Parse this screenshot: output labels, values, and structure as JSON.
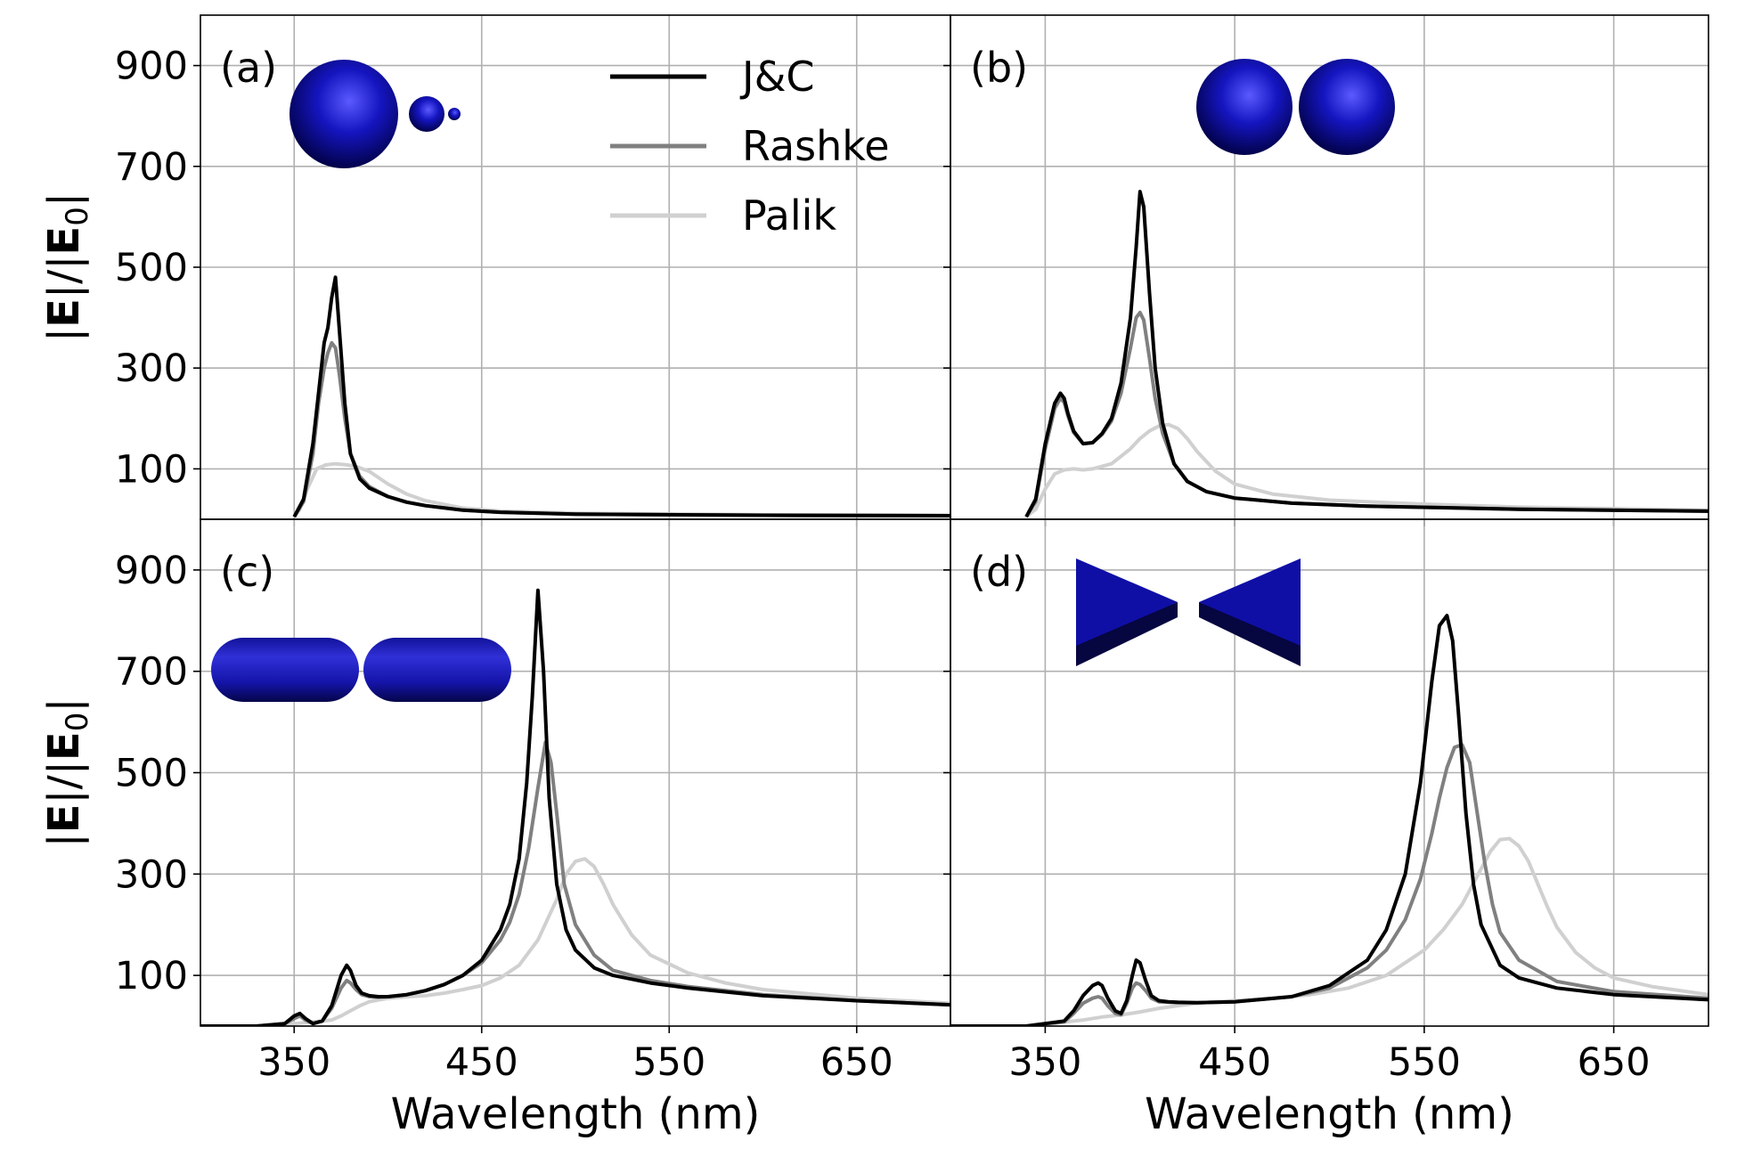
{
  "chart_data": [
    {
      "type": "line",
      "panel_label": "(a)",
      "xlim": [
        300,
        700
      ],
      "ylim": [
        0,
        1000
      ],
      "xticks": [
        "350",
        "450",
        "550",
        "650"
      ],
      "yticks": [
        "100",
        "300",
        "500",
        "700",
        "900"
      ],
      "ylabel_parts": [
        "|",
        "E",
        "|/|",
        "E",
        "0",
        "|"
      ],
      "xlabel": "",
      "grid": true,
      "inset": "spheres",
      "series": [
        {
          "name": "J&C",
          "color": "#000000",
          "x": [
            350,
            355,
            360,
            363,
            366,
            368,
            370,
            372,
            374,
            377,
            380,
            385,
            390,
            400,
            410,
            420,
            440,
            460,
            500,
            600,
            700
          ],
          "y": [
            5,
            40,
            150,
            250,
            350,
            380,
            440,
            480,
            380,
            230,
            130,
            80,
            62,
            45,
            34,
            27,
            18,
            14,
            10,
            8,
            7
          ]
        },
        {
          "name": "Rashke",
          "color": "#808080",
          "x": [
            350,
            355,
            360,
            363,
            366,
            368,
            370,
            372,
            374,
            377,
            380,
            385,
            390,
            400,
            410,
            420,
            440,
            460,
            500,
            600,
            700
          ],
          "y": [
            5,
            35,
            130,
            230,
            300,
            330,
            350,
            340,
            290,
            200,
            130,
            85,
            65,
            45,
            34,
            27,
            18,
            14,
            10,
            8,
            7
          ]
        },
        {
          "name": "Palik",
          "color": "#d0d0d0",
          "x": [
            350,
            353,
            357,
            362,
            367,
            372,
            378,
            383,
            390,
            400,
            410,
            420,
            440,
            460,
            500,
            600,
            700
          ],
          "y": [
            5,
            20,
            60,
            100,
            108,
            110,
            108,
            105,
            95,
            70,
            50,
            37,
            22,
            16,
            12,
            9,
            8
          ]
        }
      ]
    },
    {
      "type": "line",
      "panel_label": "(b)",
      "xlim": [
        300,
        700
      ],
      "ylim": [
        0,
        1000
      ],
      "xticks": [
        "350",
        "450",
        "550",
        "650"
      ],
      "yticks": [
        "100",
        "300",
        "500",
        "700",
        "900"
      ],
      "xlabel": "",
      "grid": true,
      "inset": "dimer",
      "series": [
        {
          "name": "J&C",
          "color": "#000000",
          "x": [
            340,
            345,
            350,
            355,
            358,
            360,
            362,
            365,
            370,
            375,
            380,
            385,
            390,
            395,
            398,
            400,
            402,
            405,
            408,
            412,
            418,
            425,
            435,
            450,
            480,
            520,
            600,
            700
          ],
          "y": [
            5,
            40,
            150,
            230,
            250,
            240,
            210,
            175,
            150,
            152,
            170,
            200,
            270,
            400,
            540,
            650,
            620,
            450,
            300,
            190,
            110,
            75,
            55,
            42,
            32,
            26,
            20,
            16
          ]
        },
        {
          "name": "Rashke",
          "color": "#808080",
          "x": [
            340,
            345,
            350,
            355,
            358,
            360,
            362,
            365,
            370,
            375,
            380,
            385,
            390,
            395,
            398,
            400,
            402,
            405,
            408,
            412,
            418,
            425,
            435,
            450,
            480,
            520,
            600,
            700
          ],
          "y": [
            5,
            35,
            140,
            220,
            240,
            232,
            205,
            172,
            150,
            152,
            168,
            195,
            250,
            340,
            400,
            410,
            395,
            320,
            240,
            170,
            110,
            75,
            55,
            42,
            32,
            26,
            20,
            16
          ]
        },
        {
          "name": "Palik",
          "color": "#d0d0d0",
          "x": [
            340,
            345,
            350,
            355,
            360,
            365,
            370,
            375,
            380,
            385,
            390,
            395,
            400,
            405,
            410,
            415,
            420,
            425,
            430,
            440,
            450,
            470,
            500,
            550,
            600,
            700
          ],
          "y": [
            5,
            20,
            60,
            90,
            98,
            100,
            98,
            100,
            105,
            110,
            125,
            140,
            160,
            175,
            185,
            188,
            180,
            160,
            135,
            95,
            70,
            50,
            38,
            30,
            24,
            18
          ]
        }
      ]
    },
    {
      "type": "line",
      "panel_label": "(c)",
      "xlim": [
        300,
        700
      ],
      "ylim": [
        0,
        1000
      ],
      "xticks": [
        "350",
        "450",
        "550",
        "650"
      ],
      "yticks": [
        "100",
        "300",
        "500",
        "700",
        "900"
      ],
      "ylabel_parts": [
        "|",
        "E",
        "|/|",
        "E",
        "0",
        "|"
      ],
      "xlabel": "Wavelength (nm)",
      "grid": true,
      "inset": "rods",
      "series": [
        {
          "name": "J&C",
          "color": "#000000",
          "x": [
            300,
            330,
            345,
            350,
            353,
            356,
            360,
            365,
            370,
            375,
            378,
            380,
            383,
            386,
            390,
            395,
            400,
            410,
            420,
            430,
            440,
            450,
            460,
            465,
            470,
            474,
            477,
            480,
            483,
            486,
            490,
            495,
            500,
            510,
            520,
            540,
            560,
            600,
            650,
            700
          ],
          "y": [
            0,
            0,
            5,
            20,
            25,
            15,
            5,
            10,
            40,
            100,
            120,
            110,
            80,
            65,
            60,
            58,
            58,
            62,
            70,
            82,
            100,
            130,
            190,
            240,
            330,
            480,
            650,
            860,
            700,
            450,
            280,
            190,
            150,
            115,
            100,
            85,
            75,
            60,
            50,
            42
          ]
        },
        {
          "name": "Rashke",
          "color": "#808080",
          "x": [
            300,
            330,
            345,
            350,
            353,
            356,
            360,
            365,
            370,
            375,
            378,
            380,
            383,
            386,
            390,
            395,
            400,
            410,
            420,
            430,
            440,
            450,
            460,
            465,
            470,
            475,
            480,
            484,
            487,
            490,
            494,
            500,
            510,
            520,
            540,
            560,
            600,
            650,
            700
          ],
          "y": [
            0,
            0,
            5,
            15,
            20,
            12,
            5,
            10,
            35,
            75,
            90,
            85,
            72,
            62,
            58,
            57,
            58,
            62,
            70,
            82,
            100,
            125,
            170,
            205,
            260,
            350,
            470,
            560,
            520,
            420,
            280,
            200,
            140,
            110,
            90,
            78,
            62,
            50,
            42
          ]
        },
        {
          "name": "Palik",
          "color": "#d0d0d0",
          "x": [
            300,
            330,
            350,
            360,
            370,
            375,
            380,
            385,
            390,
            400,
            410,
            420,
            430,
            440,
            450,
            460,
            470,
            480,
            490,
            495,
            500,
            505,
            510,
            515,
            520,
            530,
            540,
            560,
            580,
            600,
            650,
            700
          ],
          "y": [
            0,
            0,
            5,
            8,
            12,
            20,
            30,
            40,
            48,
            55,
            58,
            60,
            65,
            72,
            80,
            95,
            120,
            170,
            250,
            300,
            325,
            330,
            315,
            280,
            240,
            180,
            140,
            105,
            85,
            72,
            55,
            45
          ]
        }
      ]
    },
    {
      "type": "line",
      "panel_label": "(d)",
      "xlim": [
        300,
        700
      ],
      "ylim": [
        0,
        1000
      ],
      "xticks": [
        "350",
        "450",
        "550",
        "650"
      ],
      "yticks": [
        "100",
        "300",
        "500",
        "700",
        "900"
      ],
      "xlabel": "Wavelength (nm)",
      "grid": true,
      "inset": "bowtie",
      "series": [
        {
          "name": "J&C",
          "color": "#000000",
          "x": [
            300,
            340,
            350,
            360,
            365,
            370,
            375,
            378,
            380,
            383,
            387,
            390,
            393,
            396,
            398,
            400,
            403,
            406,
            410,
            415,
            420,
            430,
            450,
            480,
            500,
            520,
            530,
            540,
            548,
            554,
            558,
            562,
            565,
            568,
            572,
            576,
            580,
            590,
            600,
            620,
            650,
            700
          ],
          "y": [
            0,
            0,
            5,
            10,
            30,
            60,
            80,
            85,
            80,
            55,
            30,
            25,
            50,
            100,
            130,
            125,
            90,
            60,
            50,
            48,
            47,
            46,
            48,
            58,
            80,
            130,
            190,
            300,
            480,
            680,
            790,
            810,
            760,
            620,
            420,
            280,
            200,
            120,
            95,
            75,
            62,
            52
          ]
        },
        {
          "name": "Rashke",
          "color": "#808080",
          "x": [
            300,
            340,
            350,
            360,
            365,
            370,
            375,
            378,
            380,
            383,
            387,
            390,
            393,
            396,
            398,
            400,
            403,
            406,
            410,
            415,
            420,
            430,
            450,
            480,
            500,
            520,
            530,
            540,
            548,
            554,
            558,
            562,
            566,
            570,
            574,
            578,
            582,
            586,
            590,
            600,
            620,
            650,
            700
          ],
          "y": [
            0,
            0,
            5,
            8,
            25,
            45,
            55,
            58,
            55,
            40,
            25,
            22,
            45,
            75,
            85,
            82,
            70,
            55,
            48,
            47,
            46,
            46,
            48,
            58,
            75,
            115,
            150,
            210,
            290,
            380,
            450,
            510,
            550,
            555,
            520,
            420,
            320,
            240,
            185,
            130,
            88,
            68,
            55
          ]
        },
        {
          "name": "Palik",
          "color": "#d0d0d0",
          "x": [
            300,
            340,
            350,
            360,
            370,
            380,
            390,
            400,
            410,
            420,
            430,
            440,
            450,
            470,
            490,
            510,
            530,
            550,
            560,
            570,
            575,
            580,
            585,
            590,
            595,
            600,
            605,
            610,
            615,
            620,
            630,
            640,
            650,
            670,
            700
          ],
          "y": [
            0,
            0,
            3,
            8,
            12,
            18,
            22,
            28,
            35,
            40,
            45,
            48,
            50,
            55,
            62,
            75,
            100,
            150,
            190,
            240,
            275,
            310,
            345,
            368,
            370,
            355,
            325,
            280,
            235,
            195,
            145,
            115,
            95,
            78,
            62
          ]
        }
      ]
    }
  ]
}
